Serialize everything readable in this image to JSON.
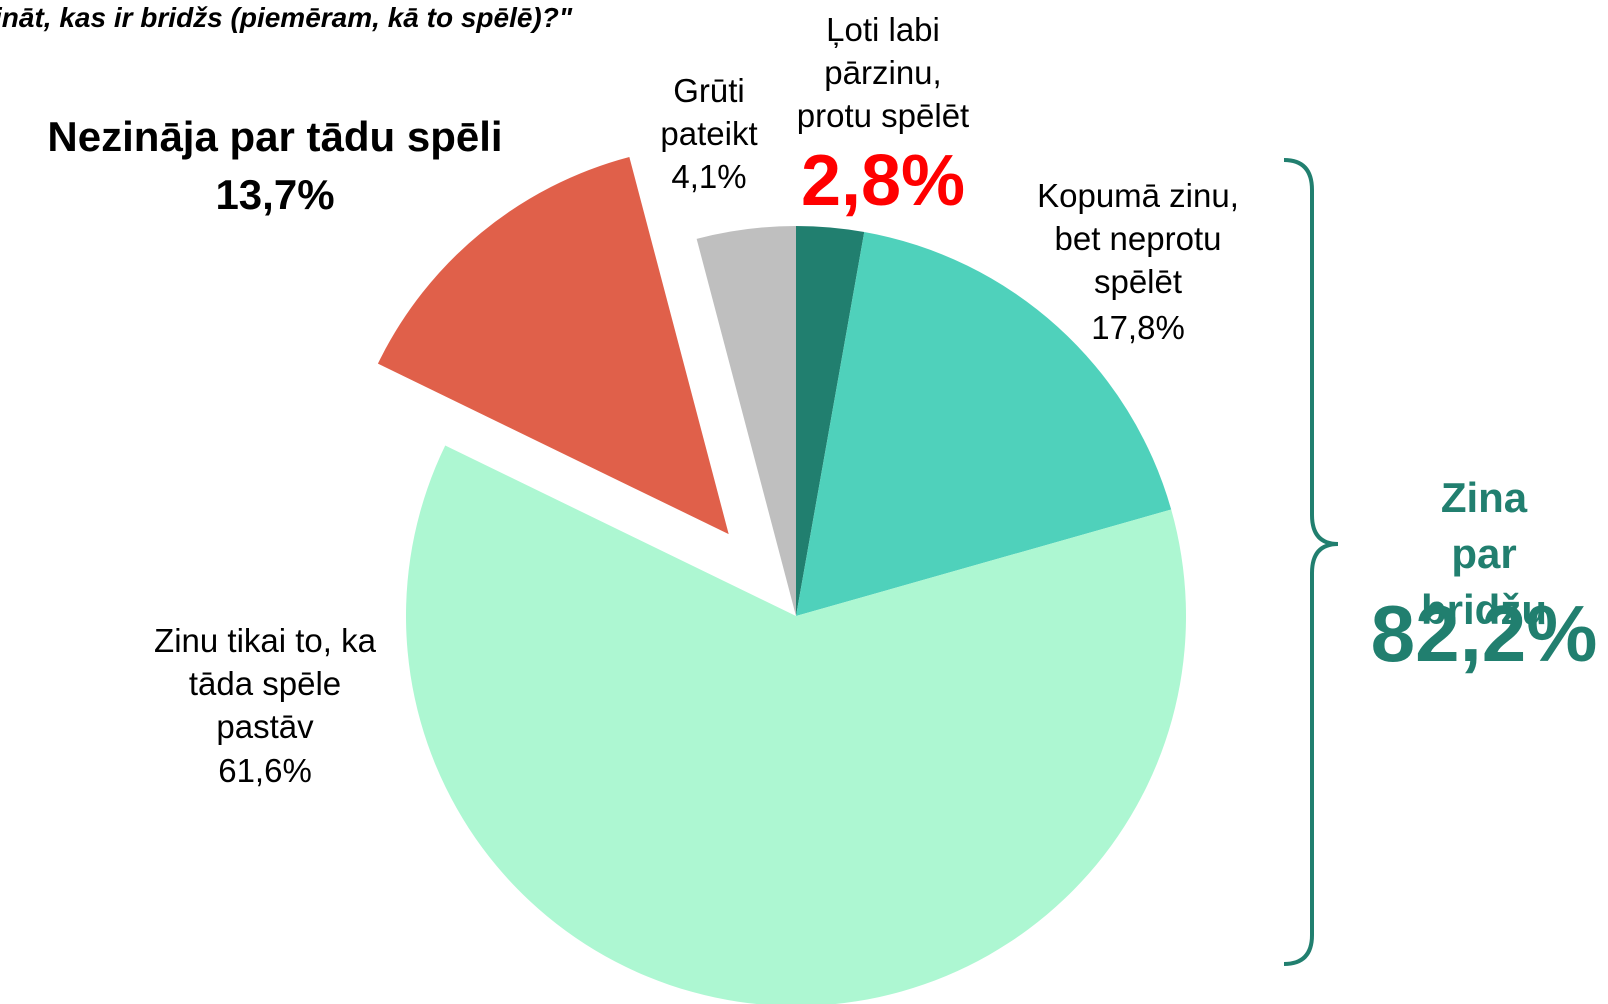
{
  "chart_data": {
    "type": "pie",
    "title": "ināt, kas ir bridžs (piemēram, kā to spēlē)?\"",
    "categories": [
      "Ļoti labi\npārzinu,\nprotu spēlēt",
      "Kopumā zinu,\nbet neprotu\nspēlēt",
      "Zinu tikai to, ka\ntāda spēle\npastāv",
      "Nezināja par tādu spēli",
      "Grūti\npateikt"
    ],
    "values": [
      2.8,
      17.8,
      61.6,
      13.7,
      4.1
    ],
    "value_labels": [
      "2,8%",
      "17,8%",
      "61,6%",
      "13,7%",
      "4,1%"
    ],
    "colors": [
      "#217f6f",
      "#4fd1bb",
      "#adf7d2",
      "#e0604a",
      "#bfbfbf"
    ],
    "explode": [
      false,
      false,
      false,
      true,
      false
    ],
    "annotations": [
      {
        "text": "Zina par\nbridžu",
        "value": 82.2,
        "label": "82,2%"
      }
    ]
  }
}
